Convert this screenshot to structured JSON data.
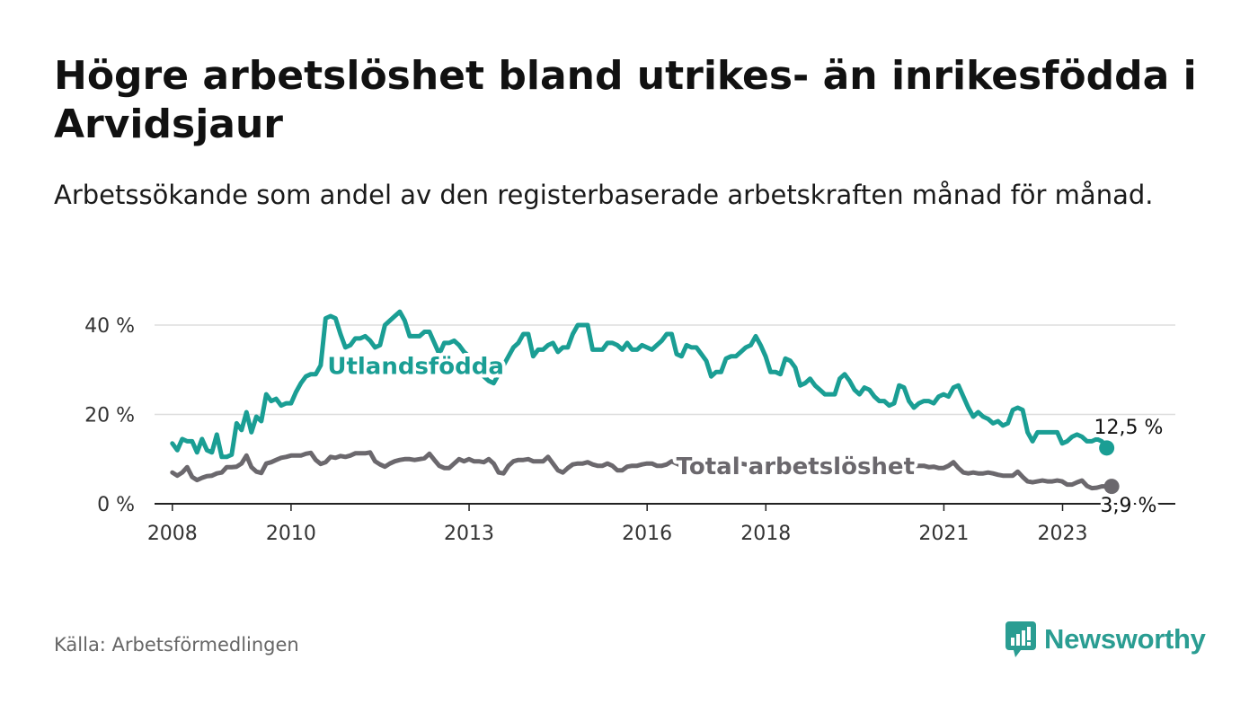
{
  "header": {
    "title": "Högre arbetslöshet bland utrikes- än inrikesfödda i Arvidsjaur",
    "subtitle": "Arbetssökande som andel av den registerbaserade arbetskraften månad för månad."
  },
  "footer": {
    "source": "Källa: Arbetsförmedlingen",
    "brand": "Newsworthy"
  },
  "colors": {
    "foreign": "#1a9e94",
    "total": "#6b686d",
    "grid": "#dddddd",
    "axis": "#222222",
    "brand": "#2a9d92"
  },
  "chart_data": {
    "type": "line",
    "title": "Högre arbetslöshet bland utrikes- än inrikesfödda i Arvidsjaur",
    "xlabel": "",
    "ylabel": "",
    "xlim": [
      2007.7,
      2024.9
    ],
    "ylim": [
      0,
      40
    ],
    "yticks": [
      0,
      20,
      40
    ],
    "ytick_labels": [
      "0 %",
      "20 %",
      "40 %"
    ],
    "xticks": [
      2008,
      2010,
      2013,
      2016,
      2018,
      2021,
      2023
    ],
    "xtick_labels": [
      "2008",
      "2010",
      "2013",
      "2016",
      "2018",
      "2021",
      "2023"
    ],
    "grid": true,
    "legend": "inline labels",
    "series": [
      {
        "name": "Utlandsfödda",
        "label": "Utlandsfödda",
        "end_label": "12,5 %",
        "color": "#1a9e94",
        "x_start": 2008.0,
        "step": 0.0833,
        "values": [
          13.5,
          12,
          14.5,
          14,
          14,
          11.5,
          14.5,
          12,
          11.5,
          15.5,
          10.5,
          10.5,
          11,
          18,
          16.5,
          20.5,
          16,
          19.5,
          18.5,
          24.5,
          23,
          23.5,
          22,
          22.5,
          22.5,
          25,
          27,
          28.5,
          29,
          29,
          31,
          41.5,
          42,
          41.5,
          38,
          35,
          35.5,
          37,
          37,
          37.5,
          36.5,
          35,
          35.5,
          40,
          41,
          42,
          43,
          41,
          37.5,
          37.5,
          37.5,
          38.5,
          38.5,
          36,
          33.5,
          36,
          36,
          36.5,
          35.5,
          34,
          33,
          30,
          29.5,
          28.5,
          27.5,
          27,
          29,
          31,
          33,
          35,
          36,
          38,
          38,
          33,
          34.5,
          34.5,
          35.5,
          36,
          34,
          35,
          35,
          38,
          40,
          40,
          40,
          34.5,
          34.5,
          34.5,
          36,
          36,
          35.5,
          34.5,
          36,
          34.5,
          34.5,
          35.5,
          35,
          34.5,
          35.5,
          36.5,
          38,
          38,
          33.5,
          33,
          35.5,
          35,
          35,
          33.5,
          32,
          28.5,
          29.5,
          29.5,
          32.5,
          33,
          33,
          34,
          35,
          35.5,
          37.5,
          35.5,
          33,
          29.5,
          29.5,
          29,
          32.5,
          32,
          30.5,
          26.5,
          27,
          28,
          26.5,
          25.5,
          24.5,
          24.5,
          24.5,
          28,
          29,
          27.5,
          25.5,
          24.5,
          26,
          25.5,
          24,
          23,
          23,
          22,
          22.5,
          26.5,
          26,
          23,
          21.5,
          22.5,
          23,
          23,
          22.5,
          24,
          24.5,
          24,
          26,
          26.5,
          24,
          21.5,
          19.5,
          20.5,
          19.5,
          19,
          18,
          18.5,
          17.5,
          18,
          21,
          21.5,
          21,
          16,
          14,
          16,
          16,
          16,
          16,
          16,
          13.5,
          14,
          15,
          15.5,
          15,
          14,
          14,
          14.5,
          14,
          12.5
        ]
      },
      {
        "name": "Total arbetslöshet",
        "label": "Total arbetslöshet",
        "end_label": "3,9 %",
        "color": "#6b686d",
        "x_start": 2008.0,
        "step": 0.0833,
        "values": [
          7,
          6.3,
          7,
          8.2,
          6,
          5.3,
          5.8,
          6.2,
          6.3,
          6.8,
          7,
          8.2,
          8.2,
          8.3,
          9,
          10.8,
          8.2,
          7.2,
          6.9,
          9,
          9.3,
          9.8,
          10.3,
          10.5,
          10.8,
          10.8,
          10.8,
          11.2,
          11.4,
          9.8,
          8.9,
          9.3,
          10.5,
          10.3,
          10.7,
          10.5,
          10.8,
          11.3,
          11.3,
          11.3,
          11.5,
          9.5,
          8.8,
          8.3,
          9,
          9.5,
          9.8,
          10,
          10,
          9.8,
          10,
          10.2,
          11.2,
          9.8,
          8.5,
          8,
          8,
          9,
          10,
          9.5,
          10,
          9.5,
          9.5,
          9.3,
          10,
          9,
          7,
          6.8,
          8.5,
          9.5,
          9.8,
          9.8,
          10,
          9.5,
          9.5,
          9.5,
          10.5,
          9,
          7.5,
          7,
          8,
          8.8,
          9,
          9,
          9.3,
          8.8,
          8.5,
          8.5,
          9,
          8.5,
          7.5,
          7.5,
          8.3,
          8.5,
          8.5,
          8.8,
          9,
          9,
          8.5,
          8.5,
          8.8,
          9.5,
          9,
          8.5,
          8.3,
          8,
          8,
          7.8,
          7.8,
          8,
          8,
          8.2,
          8.5,
          8.5,
          8.5,
          9,
          8.8,
          8.5,
          8.5,
          8.5,
          8.3,
          8.3,
          8.2,
          8,
          8,
          7.8,
          7.8,
          7.8,
          7.8,
          8,
          8,
          8.2,
          8,
          7.8,
          7.8,
          7.8,
          8,
          8,
          8.2,
          8.5,
          8.5,
          8.5,
          8.3,
          8.5,
          8.2,
          8.5,
          8.5,
          8.3,
          8.5,
          8.5,
          8.5,
          8.5,
          8.5,
          8.2,
          8.3,
          8,
          8,
          8.5,
          9.3,
          8,
          7,
          6.8,
          7,
          6.8,
          6.8,
          7,
          6.8,
          6.5,
          6.3,
          6.3,
          6.3,
          7.2,
          6,
          5,
          4.8,
          5,
          5.2,
          5,
          5,
          5.2,
          5,
          4.3,
          4.3,
          4.8,
          5.2,
          4,
          3.5,
          3.6,
          3.9,
          3.9,
          3.9
        ]
      }
    ]
  }
}
